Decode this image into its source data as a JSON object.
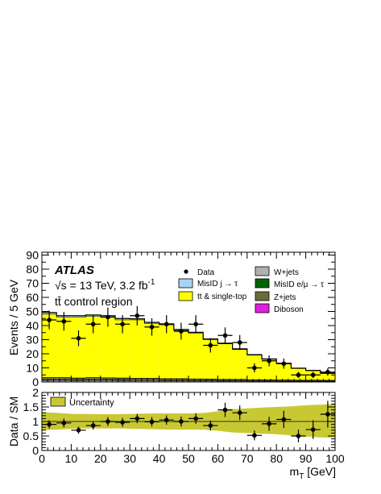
{
  "chart_data": [
    {
      "type": "bar",
      "stacked": true,
      "panel": "main",
      "x_bin_edges": [
        0,
        5,
        10,
        15,
        20,
        25,
        30,
        35,
        40,
        45,
        50,
        55,
        60,
        65,
        70,
        75,
        80,
        85,
        90,
        95,
        100
      ],
      "xlim": [
        0,
        100
      ],
      "ylim": [
        0,
        92
      ],
      "ylabel": "Events / 5 GeV",
      "y_ticks": [
        "0",
        "5",
        "10",
        "15",
        "20",
        "25",
        "30",
        "35",
        "40",
        "45",
        "50",
        "55",
        "60",
        "65",
        "70",
        "75",
        "80",
        "85",
        "90"
      ],
      "texts": {
        "experiment": "ATLAS",
        "energy": "√s = 13 TeV, 3.2 fb",
        "energy_sup": "-1",
        "region": "tt̄ control region"
      },
      "legend_placement": "top-right",
      "series": [
        {
          "name": "W+jets",
          "color": "#b0b0b0",
          "values": [
            1.2,
            1.2,
            1.0,
            1.2,
            1.2,
            1.0,
            1.0,
            1.0,
            0.9,
            0.9,
            0.8,
            0.8,
            0.7,
            0.7,
            0.6,
            0.6,
            0.5,
            0.5,
            0.5,
            0.5
          ]
        },
        {
          "name": "MisID e/μ → τ",
          "color": "#006400",
          "values": [
            0.3,
            0.3,
            0.3,
            0.3,
            0.3,
            0.3,
            0.2,
            0.2,
            0.2,
            0.2,
            0.2,
            0.2,
            0.2,
            0.2,
            0.1,
            0.1,
            0.1,
            0.1,
            0.1,
            0.1
          ]
        },
        {
          "name": "Z+jets",
          "color": "#6b6b3a",
          "values": [
            1.5,
            1.5,
            1.4,
            1.5,
            1.4,
            1.4,
            1.3,
            1.3,
            1.2,
            1.2,
            1.1,
            1.0,
            0.9,
            0.9,
            0.8,
            0.7,
            0.7,
            0.6,
            0.6,
            0.5
          ]
        },
        {
          "name": "Diboson",
          "color": "#e01fe0",
          "values": [
            0.1,
            0.1,
            0.1,
            0.1,
            0.1,
            0.1,
            0.1,
            0.1,
            0.1,
            0.1,
            0.1,
            0.1,
            0.1,
            0.1,
            0.1,
            0.1,
            0.1,
            0.1,
            0.1,
            0.1
          ]
        },
        {
          "name": "tt & single-top",
          "color": "#ffff00",
          "values": [
            44.9,
            42.9,
            43.2,
            43.4,
            43.0,
            41.2,
            41.4,
            38.9,
            38.1,
            34.1,
            32.3,
            27.9,
            25.1,
            21.1,
            17.4,
            14.5,
            11.6,
            8.2,
            6.7,
            4.8
          ]
        },
        {
          "name": "MisID j → τ",
          "color": "#a8d4f2",
          "values": [
            1.2,
            1.0,
            1.0,
            1.0,
            1.0,
            1.0,
            0.8,
            0.8,
            0.7,
            0.7,
            0.7,
            0.5,
            0.5,
            0.5,
            0.4,
            0.4,
            0.3,
            0.3,
            0.2,
            0.2
          ]
        }
      ],
      "data_points": {
        "name": "Data",
        "x": [
          2.5,
          7.5,
          12.5,
          17.5,
          22.5,
          27.5,
          32.5,
          37.5,
          42.5,
          47.5,
          52.5,
          57.5,
          62.5,
          67.5,
          72.5,
          77.5,
          82.5,
          87.5,
          92.5,
          97.5
        ],
        "y": [
          44,
          43,
          31,
          41,
          46,
          41,
          47,
          39,
          41,
          36,
          41,
          26,
          33,
          28,
          10,
          15,
          13,
          5,
          5,
          7
        ],
        "yerr": [
          6.6,
          6.6,
          5.6,
          6.4,
          6.8,
          6.4,
          6.9,
          6.2,
          6.4,
          6.0,
          6.4,
          5.1,
          5.7,
          5.3,
          3.2,
          3.9,
          3.6,
          2.2,
          2.2,
          2.6
        ]
      }
    },
    {
      "type": "scatter",
      "panel": "ratio",
      "x": [
        2.5,
        7.5,
        12.5,
        17.5,
        22.5,
        27.5,
        32.5,
        37.5,
        42.5,
        47.5,
        52.5,
        57.5,
        62.5,
        67.5,
        72.5,
        77.5,
        82.5,
        87.5,
        92.5,
        97.5
      ],
      "y": [
        0.9,
        0.95,
        0.7,
        0.86,
        1.0,
        0.97,
        1.1,
        0.99,
        1.05,
        1.0,
        1.1,
        0.86,
        1.4,
        1.3,
        0.52,
        0.92,
        1.07,
        0.5,
        0.72,
        1.25
      ],
      "yerr": [
        0.14,
        0.15,
        0.12,
        0.14,
        0.15,
        0.15,
        0.16,
        0.16,
        0.16,
        0.17,
        0.18,
        0.17,
        0.25,
        0.25,
        0.17,
        0.24,
        0.3,
        0.22,
        0.32,
        0.46
      ],
      "uncertainty_band": {
        "name": "Uncertainty",
        "color": "#c8c832",
        "x": [
          0,
          5,
          10,
          15,
          20,
          25,
          30,
          35,
          40,
          45,
          50,
          55,
          60,
          65,
          70,
          75,
          80,
          85,
          90,
          95,
          100
        ],
        "lo": [
          0.7,
          0.72,
          0.75,
          0.76,
          0.76,
          0.76,
          0.75,
          0.74,
          0.73,
          0.72,
          0.72,
          0.72,
          0.68,
          0.62,
          0.6,
          0.58,
          0.56,
          0.52,
          0.48,
          0.45,
          0.44
        ],
        "hi": [
          1.32,
          1.3,
          1.26,
          1.26,
          1.25,
          1.25,
          1.26,
          1.27,
          1.28,
          1.28,
          1.28,
          1.29,
          1.35,
          1.42,
          1.45,
          1.48,
          1.5,
          1.52,
          1.56,
          1.58,
          1.6
        ]
      },
      "xlim": [
        0,
        100
      ],
      "ylim": [
        0,
        2
      ],
      "ylabel": "Data / SM",
      "xlabel": "m",
      "xlabel_sub": "T",
      "xlabel_unit": " [GeV]",
      "x_ticks": [
        "0",
        "10",
        "20",
        "30",
        "40",
        "50",
        "60",
        "70",
        "80",
        "90",
        "100"
      ],
      "y_ticks": [
        "0",
        "0.5",
        "1",
        "1.5",
        "2"
      ]
    }
  ]
}
